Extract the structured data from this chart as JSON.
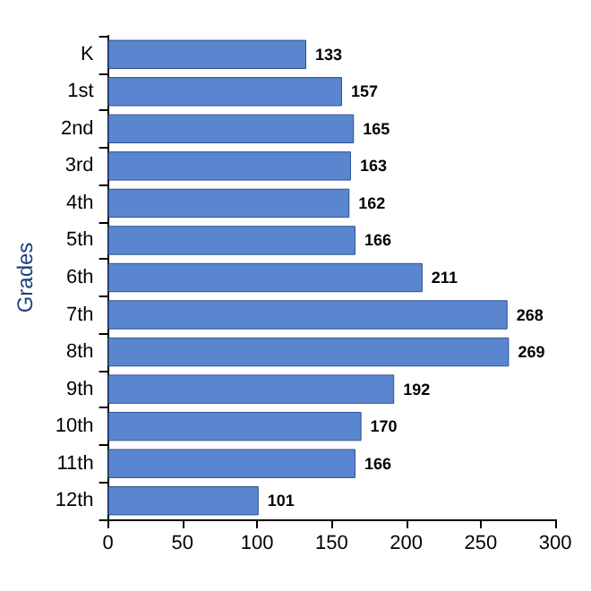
{
  "chart_data": {
    "type": "bar",
    "orientation": "horizontal",
    "ylabel": "Grades",
    "categories": [
      "K",
      "1st",
      "2nd",
      "3rd",
      "4th",
      "5th",
      "6th",
      "7th",
      "8th",
      "9th",
      "10th",
      "11th",
      "12th"
    ],
    "values": [
      133,
      157,
      165,
      163,
      162,
      166,
      211,
      268,
      269,
      192,
      170,
      166,
      101
    ],
    "color": "#5a86cf",
    "xlim": [
      0,
      300
    ],
    "xticks": [
      0,
      50,
      100,
      150,
      200,
      250,
      300
    ],
    "data_labels": true,
    "grid": false
  }
}
